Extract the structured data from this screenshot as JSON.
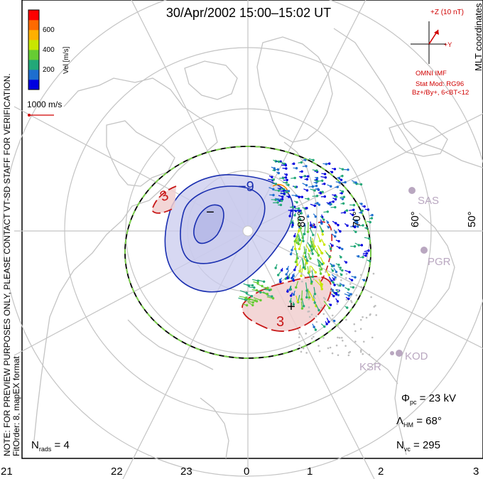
{
  "title": "30/Apr/2002 15:00–15:02 UT",
  "vertical_note": {
    "line1": "NOTE: FOR PREVIEW PURPOSES ONLY, PLEASE CONTACT VT-SD STAFF FOR VERIFICATION.",
    "line2": "FitOrder: 8, mapEX format"
  },
  "coordinates_label": "MLT coordinates",
  "velocity_scale": {
    "label": "Vel [m/s]",
    "ticks": [
      "600",
      "400",
      "200"
    ],
    "colors": [
      "#ff0000",
      "#ff6a00",
      "#ffb000",
      "#c8e600",
      "#66cc33",
      "#22a878",
      "#1e6ecf",
      "#0000e0"
    ]
  },
  "reference_vector": {
    "label": "1000 m/s"
  },
  "imf": {
    "z_label": "+Z (10 nT)",
    "y_label": "+Y",
    "source": "OMNI IMF",
    "model": "Stat Mod: RG96",
    "condition": "Bz+/By+, 6<BT<12"
  },
  "mlt_labels": [
    "21",
    "22",
    "23",
    "0",
    "1",
    "2",
    "3"
  ],
  "latitude_labels": [
    "80°",
    "70°",
    "60°",
    "50°"
  ],
  "stations": [
    "SAS",
    "PGR",
    "KOD",
    "KSR"
  ],
  "contour_labels": {
    "negative_potential": "−9",
    "positive_potential": "3",
    "positive_potential_alt": "3"
  },
  "extrema": {
    "minimum": "−",
    "maximum": "+"
  },
  "stats": {
    "phi_pc": "23 kV",
    "lambda_hm": "68°",
    "n_vc": "295",
    "n_rads": "4"
  },
  "colors": {
    "grid": "#c4c4c4",
    "land": "#c4c4c4",
    "negative_cell": "#1a2fb0",
    "negative_fill": "#c9cbed",
    "positive_cell": "#c81818",
    "positive_fill": "#f1cfcf",
    "imf_red": "#d00000",
    "station": "#b9a7c0"
  }
}
